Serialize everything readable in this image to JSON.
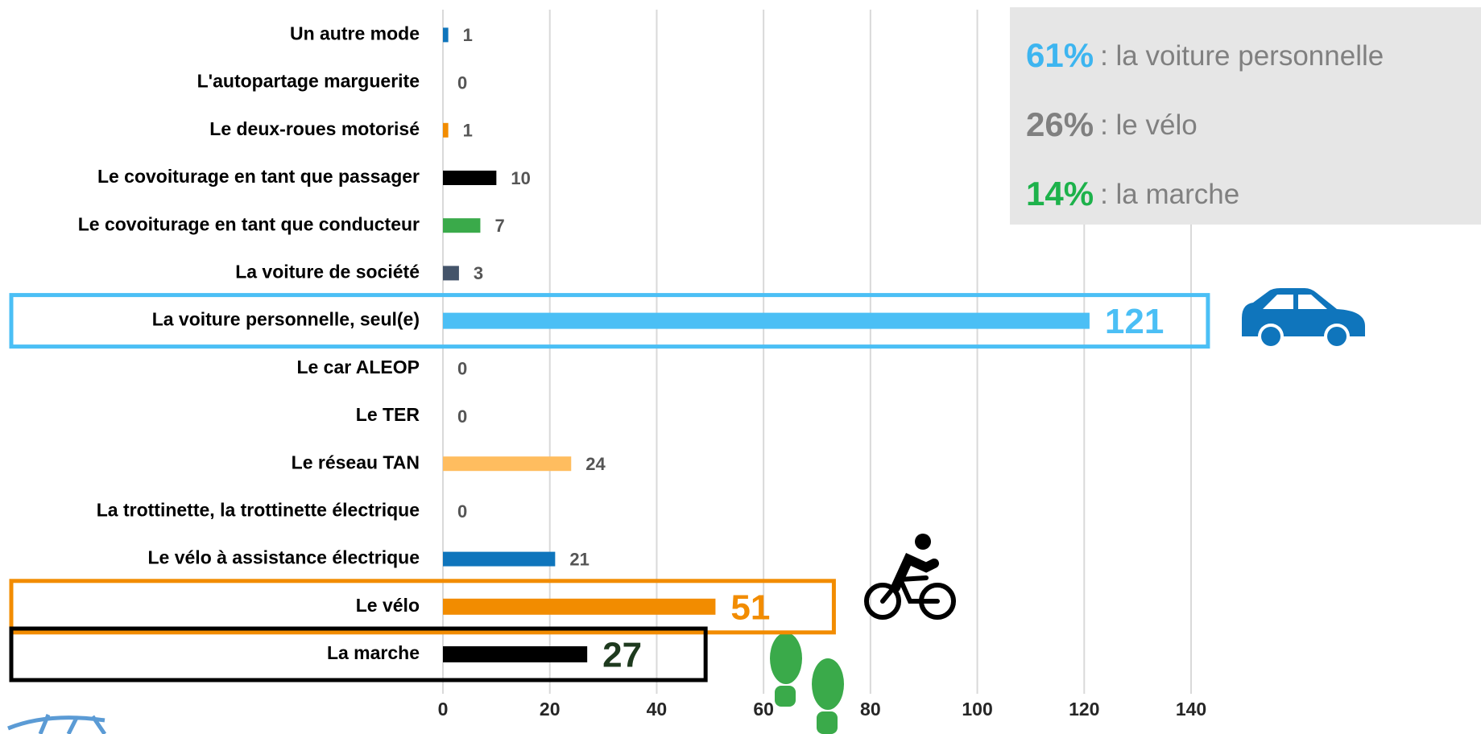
{
  "chart_data": {
    "type": "bar",
    "orientation": "horizontal",
    "categories": [
      "Un autre mode",
      "L'autopartage marguerite",
      "Le deux-roues motorisé",
      "Le covoiturage en tant que passager",
      "Le covoiturage en tant que conducteur",
      "La voiture de société",
      "La voiture personnelle, seul(e)",
      "Le car ALEOP",
      "Le TER",
      "Le réseau TAN",
      "La trottinette, la trottinette électrique",
      "Le vélo à assistance électrique",
      "Le vélo",
      "La marche"
    ],
    "values": [
      1,
      0,
      1,
      10,
      7,
      3,
      121,
      0,
      0,
      24,
      0,
      21,
      51,
      27
    ],
    "colors": [
      "#0f75bc",
      null,
      "#f28c00",
      "#000000",
      "#3aaa4a",
      "#44546a",
      "#4bbff5",
      null,
      null,
      "#ffbd5f",
      null,
      "#0f75bc",
      "#f28c00",
      "#000000"
    ],
    "highlight_colors": [
      null,
      null,
      null,
      null,
      null,
      null,
      "#4bbff5",
      null,
      null,
      null,
      null,
      null,
      "#f28c00",
      "#000000"
    ],
    "label_colors": [
      null,
      null,
      null,
      null,
      null,
      null,
      "#4bbff5",
      null,
      null,
      null,
      null,
      null,
      "#f28c00",
      "#1e3a1e"
    ],
    "xlim": [
      0,
      140
    ],
    "xticks": [
      0,
      20,
      40,
      60,
      80,
      100,
      120,
      140
    ],
    "grid": true,
    "annotations": [
      {
        "emphasis": "61%",
        "text": ": la voiture personnelle",
        "color": "#3db5f0"
      },
      {
        "emphasis": "26%",
        "text": ": le vélo",
        "color": "#808080"
      },
      {
        "emphasis": "14%",
        "text": ": la marche",
        "color": "#1db24b"
      }
    ]
  }
}
